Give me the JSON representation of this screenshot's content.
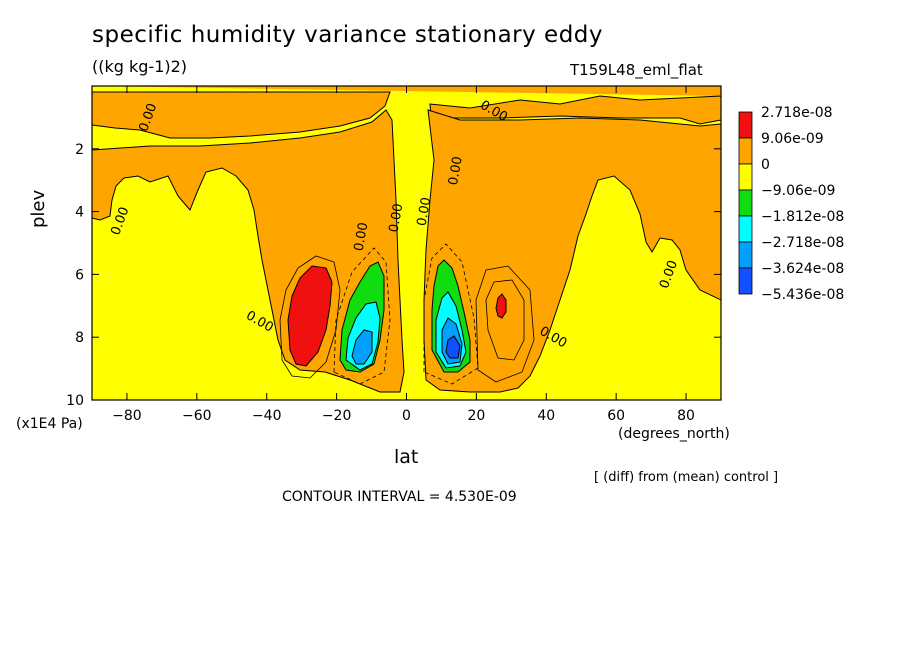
{
  "header": {
    "title": "specific humidity variance stationary eddy",
    "units": "((kg kg-1)2)",
    "run": "T159L48_eml_flat"
  },
  "axes": {
    "ylabel": "plev",
    "yunit": "(x1E4 Pa)",
    "xlabel": "lat",
    "xunit": "(degrees_north)"
  },
  "footer": {
    "diff_note": "[ (diff) from (mean) control ]",
    "contour_interval": "CONTOUR INTERVAL = 4.530E-09"
  },
  "colors": {
    "red": "#f01010",
    "orange": "#ffa500",
    "yellow": "#ffff00",
    "green": "#10dc10",
    "cyan": "#00ffff",
    "lightblue": "#00a0ff",
    "blue": "#1050ff"
  },
  "chart_data": {
    "type": "heatmap",
    "title": "specific humidity variance stationary eddy",
    "xlabel": "lat",
    "ylabel": "plev",
    "xlim": [
      -90,
      90
    ],
    "ylim": [
      10,
      0
    ],
    "xticks": [
      -80,
      -60,
      -40,
      -20,
      0,
      20,
      40,
      60,
      80
    ],
    "yticks": [
      2,
      4,
      6,
      8,
      10
    ],
    "contour_interval": 4.53e-09,
    "contour_labels": [
      {
        "text": "0.00",
        "lat": -74,
        "plev": 1.0
      },
      {
        "text": "0.00",
        "lat": -82,
        "plev": 4.3
      },
      {
        "text": "0.00",
        "lat": -42,
        "plev": 7.5
      },
      {
        "text": "0.00",
        "lat": -13,
        "plev": 4.8
      },
      {
        "text": "0.00",
        "lat": -3,
        "plev": 4.2
      },
      {
        "text": "0.00",
        "lat": 5,
        "plev": 4.0
      },
      {
        "text": "0.00",
        "lat": 14,
        "plev": 2.7
      },
      {
        "text": "0.00",
        "lat": 25,
        "plev": 0.8
      },
      {
        "text": "0.00",
        "lat": 42,
        "plev": 8.0
      },
      {
        "text": "0.00",
        "lat": 75,
        "plev": 6.0
      }
    ],
    "legend": [
      {
        "label": "2.718e-08",
        "color": "#f01010"
      },
      {
        "label": "9.06e-09",
        "color": "#ffa500"
      },
      {
        "label": "0",
        "color": "#ffff00"
      },
      {
        "label": "-9.06e-09",
        "color": "#10dc10"
      },
      {
        "label": "-1.812e-08",
        "color": "#00ffff"
      },
      {
        "label": "-2.718e-08",
        "color": "#00a0ff"
      },
      {
        "label": "-3.624e-08",
        "color": "#1050ff"
      },
      {
        "label": "-5.436e-08",
        "color": "#1050ff"
      }
    ],
    "legend_placement": "right"
  }
}
